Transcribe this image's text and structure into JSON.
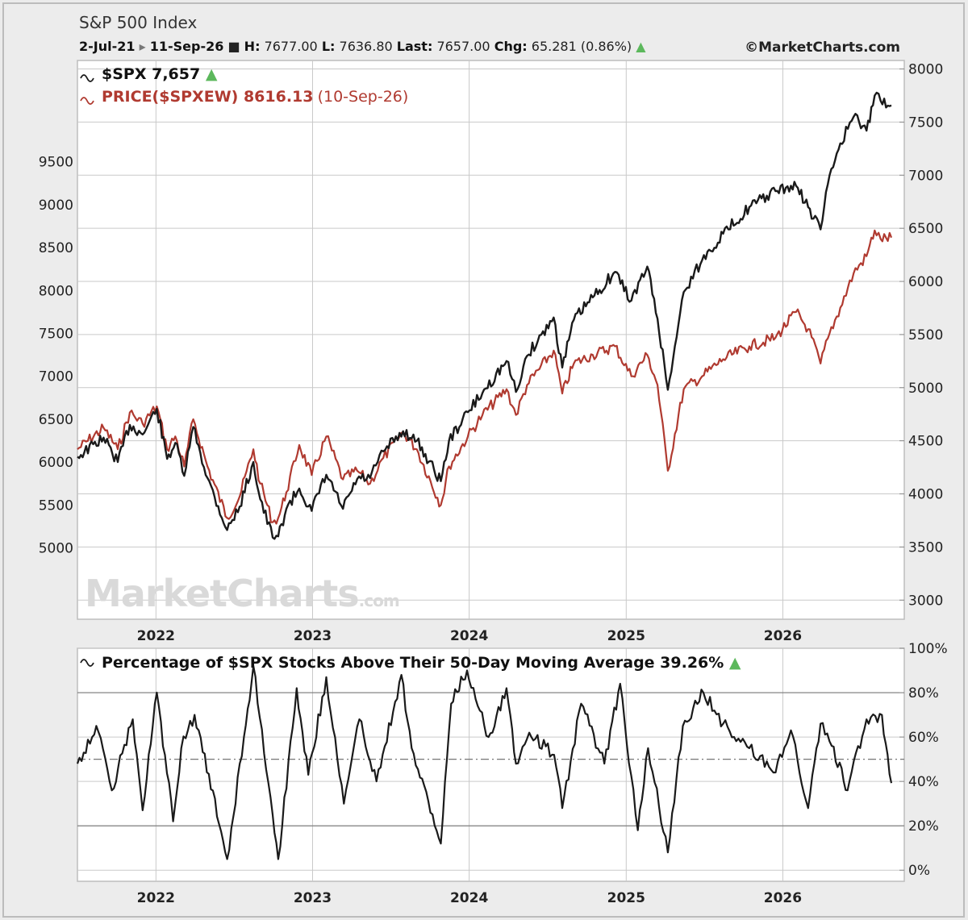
{
  "header": {
    "title": "S&P 500 Index",
    "date_range_start": "2-Jul-21",
    "date_range_end": "11-Sep-26",
    "high_label": "H:",
    "high_value": "7677.00",
    "low_label": "L:",
    "low_value": "7636.80",
    "last_label": "Last:",
    "last_value": "7657.00",
    "chg_label": "Chg:",
    "chg_value": "65.281 (0.86%)",
    "credit": "©MarketCharts.com"
  },
  "watermark": {
    "main": "MarketCharts",
    "suffix": ".com"
  },
  "colors": {
    "spx": "#1a1a1a",
    "spxew": "#b03a30",
    "up_triangle": "#5cb85c",
    "grid": "#c9c9c9"
  },
  "chart_data": [
    {
      "type": "line",
      "panel": "price",
      "x_axis": {
        "type": "date",
        "range": [
          "2021-07-02",
          "2026-09-11"
        ],
        "tick_labels": [
          "2022",
          "2023",
          "2024",
          "2025",
          "2026"
        ]
      },
      "y_left": {
        "range": [
          4170,
          10680
        ],
        "ticks": [
          5000,
          5500,
          6000,
          6500,
          7000,
          7500,
          8000,
          8500,
          9000,
          9500
        ],
        "tick_labels": [
          "5000",
          "5500",
          "6000",
          "6500",
          "7000",
          "7500",
          "8000",
          "8500",
          "9000",
          "9500"
        ]
      },
      "y_right": {
        "range": [
          2820,
          8080
        ],
        "ticks": [
          3000,
          3500,
          4000,
          4500,
          5000,
          5500,
          6000,
          6500,
          7000,
          7500,
          8000
        ],
        "tick_labels": [
          "3000",
          "3500",
          "4000",
          "4500",
          "5000",
          "5500",
          "6000",
          "6500",
          "7000",
          "7500",
          "8000"
        ]
      },
      "grid": true,
      "legend_placement": "top-left",
      "series": [
        {
          "name": "$SPX",
          "legend_label": "$SPX 7,657",
          "axis": "right",
          "x": [
            "2021-07-02",
            "2021-09-01",
            "2021-10-04",
            "2021-11-01",
            "2021-12-01",
            "2022-01-03",
            "2022-01-27",
            "2022-02-15",
            "2022-03-08",
            "2022-03-29",
            "2022-05-01",
            "2022-06-16",
            "2022-07-15",
            "2022-08-16",
            "2022-09-01",
            "2022-09-30",
            "2022-10-13",
            "2022-11-01",
            "2022-12-01",
            "2022-12-30",
            "2023-02-02",
            "2023-03-13",
            "2023-04-15",
            "2023-05-15",
            "2023-06-15",
            "2023-07-31",
            "2023-09-01",
            "2023-10-27",
            "2023-11-15",
            "2023-12-29",
            "2024-02-01",
            "2024-03-28",
            "2024-04-19",
            "2024-05-15",
            "2024-07-16",
            "2024-08-05",
            "2024-09-01",
            "2024-10-15",
            "2024-12-06",
            "2025-01-13",
            "2025-02-19",
            "2025-03-15",
            "2025-04-08",
            "2025-05-15",
            "2025-06-27",
            "2025-08-15",
            "2025-10-15",
            "2025-12-15",
            "2026-02-01",
            "2026-03-01",
            "2026-03-30",
            "2026-04-20",
            "2026-05-15",
            "2026-06-15",
            "2026-07-15",
            "2026-08-03",
            "2026-08-17",
            "2026-09-11"
          ],
          "y": [
            4350,
            4530,
            4300,
            4650,
            4560,
            4800,
            4330,
            4480,
            4170,
            4630,
            4150,
            3660,
            3880,
            4300,
            3950,
            3590,
            3600,
            3860,
            4050,
            3840,
            4180,
            3860,
            4140,
            4150,
            4400,
            4590,
            4500,
            4120,
            4500,
            4770,
            4950,
            5250,
            4960,
            5300,
            5660,
            5190,
            5640,
            5850,
            6090,
            5820,
            6140,
            5650,
            4980,
            5900,
            6200,
            6450,
            6700,
            6850,
            6900,
            6700,
            6490,
            7000,
            7300,
            7550,
            7420,
            7750,
            7700,
            7657
          ]
        },
        {
          "name": "PRICE($SPXEW)",
          "legend_label": "PRICE($SPXEW) 8616.13",
          "legend_date": "(10-Sep-26)",
          "axis": "left",
          "x": [
            "2021-07-02",
            "2021-09-01",
            "2021-10-04",
            "2021-11-01",
            "2021-12-01",
            "2022-01-03",
            "2022-01-27",
            "2022-02-15",
            "2022-03-08",
            "2022-03-29",
            "2022-05-01",
            "2022-06-16",
            "2022-07-15",
            "2022-08-16",
            "2022-09-01",
            "2022-09-30",
            "2022-10-13",
            "2022-11-01",
            "2022-12-01",
            "2022-12-30",
            "2023-02-02",
            "2023-03-13",
            "2023-04-15",
            "2023-05-15",
            "2023-06-15",
            "2023-07-31",
            "2023-09-01",
            "2023-10-27",
            "2023-11-15",
            "2023-12-29",
            "2024-02-01",
            "2024-03-28",
            "2024-04-19",
            "2024-05-15",
            "2024-07-16",
            "2024-08-05",
            "2024-09-01",
            "2024-10-15",
            "2024-12-06",
            "2025-01-13",
            "2025-02-19",
            "2025-03-15",
            "2025-04-08",
            "2025-05-15",
            "2025-06-27",
            "2025-08-15",
            "2025-10-15",
            "2025-12-15",
            "2026-02-01",
            "2026-03-01",
            "2026-03-30",
            "2026-04-20",
            "2026-05-15",
            "2026-06-15",
            "2026-07-15",
            "2026-08-03",
            "2026-08-17",
            "2026-09-11"
          ],
          "y": [
            6150,
            6400,
            6150,
            6580,
            6450,
            6650,
            6150,
            6300,
            5950,
            6500,
            5950,
            5350,
            5600,
            6150,
            5750,
            5300,
            5350,
            5650,
            6200,
            5850,
            6300,
            5800,
            5900,
            5750,
            6050,
            6350,
            6150,
            5500,
            5950,
            6300,
            6550,
            6850,
            6550,
            6900,
            7300,
            6800,
            7150,
            7250,
            7350,
            7000,
            7250,
            6900,
            5900,
            6850,
            7000,
            7200,
            7350,
            7450,
            7750,
            7550,
            7150,
            7500,
            7800,
            8200,
            8400,
            8700,
            8600,
            8616
          ]
        }
      ]
    },
    {
      "type": "line",
      "panel": "breadth",
      "title": "Percentage of $SPX Stocks Above Their 50-Day Moving Average 39.26%",
      "x_axis": {
        "type": "date",
        "range": [
          "2021-07-02",
          "2026-09-11"
        ],
        "tick_labels": [
          "2022",
          "2023",
          "2024",
          "2025",
          "2026"
        ]
      },
      "y_axis": {
        "range": [
          -5,
          100
        ],
        "ticks": [
          0,
          20,
          40,
          60,
          80,
          100
        ],
        "tick_labels": [
          "0%",
          "20%",
          "40%",
          "60%",
          "80%",
          "100%"
        ]
      },
      "reference_lines": [
        20,
        50,
        80
      ],
      "series": [
        {
          "name": "Percentage of $SPX Stocks Above Their 50-Day Moving Average",
          "x": [
            "2021-07-02",
            "2021-08-15",
            "2021-09-20",
            "2021-11-08",
            "2021-12-01",
            "2022-01-03",
            "2022-02-10",
            "2022-03-01",
            "2022-04-01",
            "2022-06-16",
            "2022-07-25",
            "2022-08-16",
            "2022-09-30",
            "2022-10-13",
            "2022-11-25",
            "2022-12-22",
            "2023-02-02",
            "2023-03-15",
            "2023-04-20",
            "2023-05-30",
            "2023-07-27",
            "2023-08-20",
            "2023-10-27",
            "2023-11-20",
            "2023-12-27",
            "2024-02-15",
            "2024-03-28",
            "2024-04-19",
            "2024-05-20",
            "2024-07-17",
            "2024-08-05",
            "2024-09-18",
            "2024-11-11",
            "2024-12-18",
            "2025-01-28",
            "2025-02-21",
            "2025-04-08",
            "2025-05-13",
            "2025-06-30",
            "2025-08-15",
            "2025-10-15",
            "2025-12-10",
            "2026-01-20",
            "2026-03-01",
            "2026-03-30",
            "2026-04-25",
            "2026-06-01",
            "2026-07-15",
            "2026-08-20",
            "2026-09-11"
          ],
          "y": [
            48,
            65,
            36,
            68,
            27,
            80,
            22,
            55,
            70,
            5,
            60,
            92,
            25,
            5,
            82,
            43,
            87,
            30,
            68,
            40,
            88,
            55,
            12,
            75,
            90,
            60,
            82,
            48,
            62,
            52,
            28,
            75,
            48,
            84,
            18,
            55,
            8,
            65,
            80,
            66,
            55,
            44,
            63,
            28,
            66,
            56,
            36,
            68,
            70,
            39.26
          ]
        }
      ]
    }
  ]
}
